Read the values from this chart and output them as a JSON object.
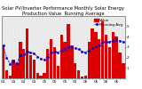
{
  "title": "Solar PV/Inverter Performance Monthly Solar Energy Production Value Running Average",
  "title_line1": "Solar PV/Inverter Performance Monthly Solar Energy",
  "title_line2": "Production Value  Running Average",
  "bar_values": [
    3.2,
    0.8,
    0.3,
    1.8,
    1.5,
    3.5,
    2.8,
    4.8,
    2.2,
    1.8,
    0.5,
    0.3,
    0.5,
    2.8,
    3.8,
    3.0,
    1.2,
    4.2,
    3.5,
    5.2,
    3.2,
    1.5,
    0.8,
    0.2,
    0.3,
    3.5,
    4.8,
    4.5,
    3.8,
    5.5,
    4.2,
    3.0,
    4.5,
    4.0,
    2.5,
    1.5
  ],
  "running_avg": [
    3.2,
    2.0,
    1.4,
    1.6,
    1.5,
    2.2,
    2.3,
    2.6,
    2.5,
    2.4,
    2.1,
    1.9,
    1.8,
    2.1,
    2.5,
    2.6,
    2.5,
    2.7,
    2.8,
    3.0,
    3.0,
    2.9,
    2.8,
    2.6,
    2.5,
    2.7,
    2.9,
    3.1,
    3.2,
    3.5,
    3.5,
    3.5,
    3.6,
    3.7,
    3.6,
    3.5
  ],
  "bar_color": "#dd0000",
  "avg_color": "#0000cc",
  "background_color": "#ffffff",
  "plot_bg_color": "#e8e8e8",
  "grid_color": "#ffffff",
  "ylim": [
    0,
    6.0
  ],
  "yticks": [
    1,
    2,
    3,
    4,
    5
  ],
  "title_fontsize": 3.8,
  "tick_fontsize": 3.0,
  "legend_fontsize": 3.0
}
